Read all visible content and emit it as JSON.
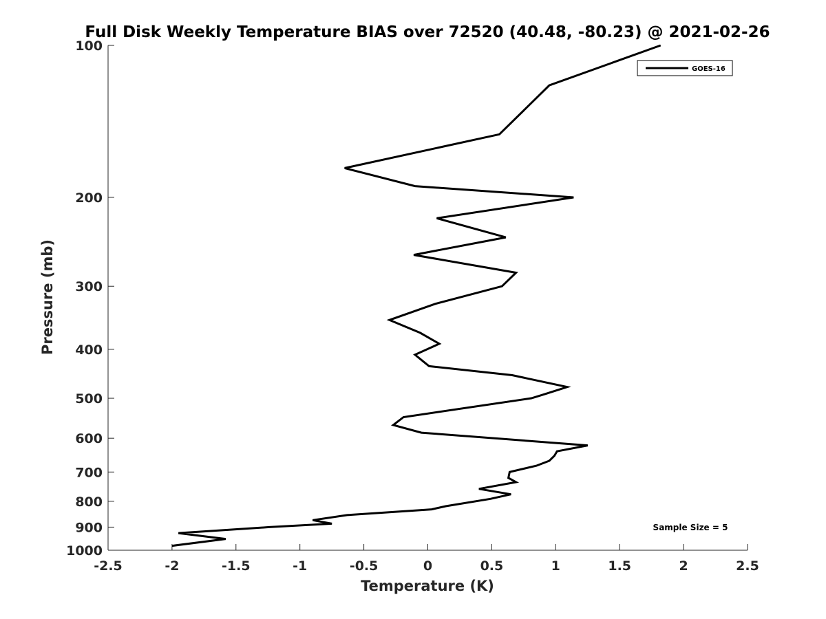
{
  "chart_data": {
    "type": "line",
    "title": "Full Disk Weekly Temperature BIAS over 72520 (40.48, -80.23) @ 2021-02-26",
    "xlabel": "Temperature (K)",
    "ylabel": "Pressure (mb)",
    "xlim": [
      -2.5,
      2.5
    ],
    "ylim": [
      100,
      1000
    ],
    "y_scale": "log",
    "y_reversed": true,
    "xticks": [
      -2.5,
      -2,
      -1.5,
      -1,
      -0.5,
      0,
      0.5,
      1,
      1.5,
      2,
      2.5
    ],
    "xtick_labels": [
      "-2.5",
      "-2",
      "-1.5",
      "-1",
      "-0.5",
      "0",
      "0.5",
      "1",
      "1.5",
      "2",
      "2.5"
    ],
    "yticks": [
      100,
      200,
      300,
      400,
      500,
      600,
      700,
      800,
      900,
      1000
    ],
    "ytick_labels": [
      "100",
      "200",
      "300",
      "400",
      "500",
      "600",
      "700",
      "800",
      "900",
      "1000"
    ],
    "grid": false,
    "legend_position": "top-right",
    "annotation": "Sample Size = 5",
    "line_color": "#000000",
    "series": [
      {
        "name": "GOES-16",
        "points": [
          [
            1.82,
            100
          ],
          [
            0.95,
            120
          ],
          [
            0.56,
            150
          ],
          [
            -0.65,
            175
          ],
          [
            -0.1,
            190
          ],
          [
            1.14,
            200
          ],
          [
            0.07,
            220
          ],
          [
            0.61,
            240
          ],
          [
            -0.11,
            260
          ],
          [
            0.69,
            282
          ],
          [
            0.58,
            300
          ],
          [
            0.06,
            325
          ],
          [
            -0.3,
            350
          ],
          [
            -0.06,
            371
          ],
          [
            0.09,
            390
          ],
          [
            -0.1,
            410
          ],
          [
            0.01,
            432
          ],
          [
            0.66,
            450
          ],
          [
            1.09,
            475
          ],
          [
            0.91,
            491
          ],
          [
            0.81,
            500
          ],
          [
            -0.19,
            545
          ],
          [
            -0.27,
            565
          ],
          [
            -0.05,
            585
          ],
          [
            1.25,
            620
          ],
          [
            1.01,
            637
          ],
          [
            0.99,
            650
          ],
          [
            0.95,
            665
          ],
          [
            0.85,
            680
          ],
          [
            0.64,
            700
          ],
          [
            0.63,
            719
          ],
          [
            0.69,
            733
          ],
          [
            0.4,
            756
          ],
          [
            0.65,
            775
          ],
          [
            0.49,
            791
          ],
          [
            0.14,
            818
          ],
          [
            0.03,
            830
          ],
          [
            -0.63,
            852
          ],
          [
            -0.9,
            872
          ],
          [
            -0.75,
            886
          ],
          [
            -1.24,
            900
          ],
          [
            -1.95,
            925
          ],
          [
            -1.58,
            950
          ],
          [
            -2.0,
            980
          ]
        ]
      }
    ]
  }
}
